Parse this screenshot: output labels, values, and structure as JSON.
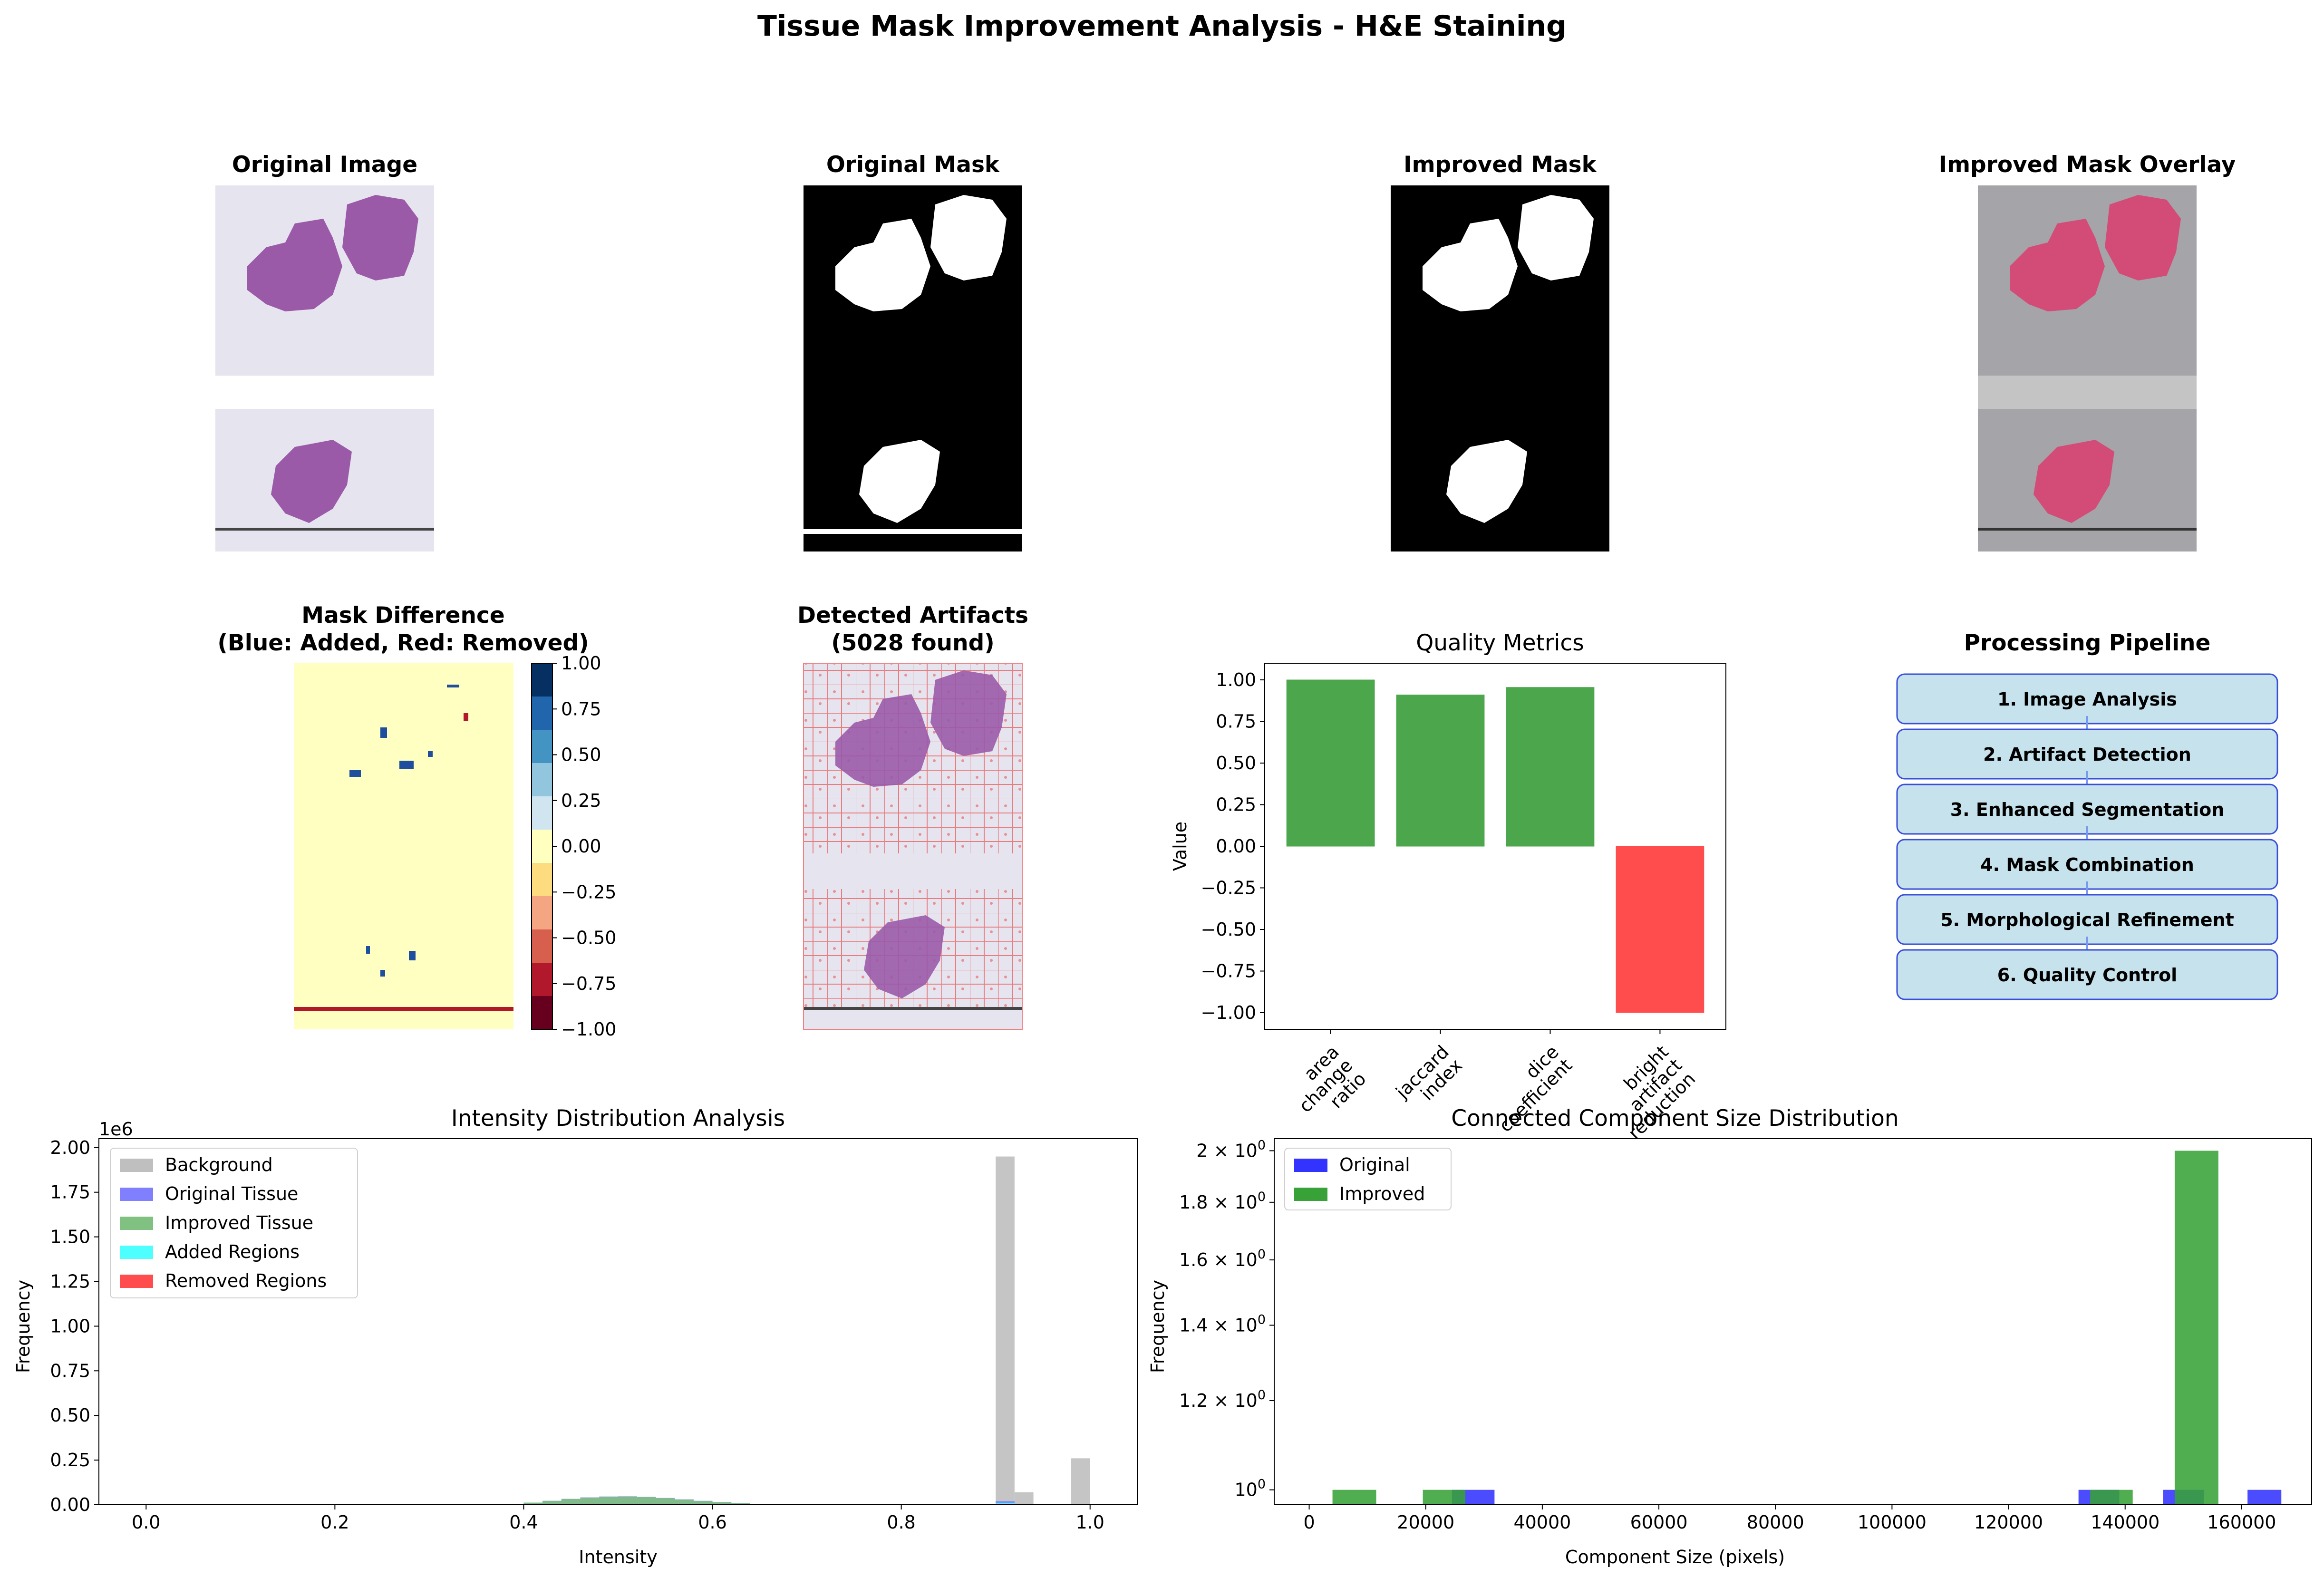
{
  "figure": {
    "title": "Tissue Mask Improvement Analysis - H&E Staining"
  },
  "panels": {
    "original_image": {
      "title": "Original Image"
    },
    "original_mask": {
      "title": "Original Mask"
    },
    "improved_mask": {
      "title": "Improved Mask"
    },
    "overlay": {
      "title": "Improved Mask Overlay"
    },
    "mask_difference": {
      "title_line1": "Mask Difference",
      "title_line2": "(Blue: Added, Red: Removed)",
      "colorbar_ticks": [
        "1.00",
        "0.75",
        "0.50",
        "0.25",
        "0.00",
        "−0.25",
        "−0.50",
        "−0.75",
        "−1.00"
      ]
    },
    "artifacts": {
      "title_line1": "Detected Artifacts",
      "title_line2": "(5028 found)"
    },
    "pipeline": {
      "title": "Processing Pipeline",
      "steps": [
        "1. Image Analysis",
        "2. Artifact Detection",
        "3. Enhanced Segmentation",
        "4. Mask Combination",
        "5. Morphological Refinement",
        "6. Quality Control"
      ]
    }
  },
  "colors": {
    "tissue": "#9a5aa8",
    "slide_bg": "#e6e4ee",
    "overlay_bg": "#a5a4a8",
    "overlay_tissue": "#d34c78",
    "pipeline_fill": "#c6e2ec",
    "pipeline_edge": "#3a4fd9",
    "diff_bg": "#ffffc2",
    "green_bar": "#4ca64c",
    "red_bar": "#ff4d4d"
  },
  "chart_data": [
    {
      "type": "bar",
      "title": "Quality Metrics",
      "ylabel": "Value",
      "categories": [
        "area\nchange\nratio",
        "jaccard\nindex",
        "dice\ncoefficient",
        "bright\nartifact\nreduction"
      ],
      "values": [
        1.0,
        0.91,
        0.955,
        -1.0
      ],
      "colors": [
        "#4ca64c",
        "#4ca64c",
        "#4ca64c",
        "#ff4d4d"
      ],
      "ylim": [
        -1.1,
        1.1
      ],
      "yticks": [
        -1.0,
        -0.75,
        -0.5,
        -0.25,
        0.0,
        0.25,
        0.5,
        0.75,
        1.0
      ],
      "ytick_labels": [
        "−1.00",
        "−0.75",
        "−0.50",
        "−0.25",
        "0.00",
        "0.25",
        "0.50",
        "0.75",
        "1.00"
      ]
    },
    {
      "type": "bar",
      "title": "Intensity Distribution Analysis",
      "xlabel": "Intensity",
      "ylabel": "Frequency",
      "offset_label": "1e6",
      "xlim": [
        -0.05,
        1.05
      ],
      "ylim": [
        0,
        2.05
      ],
      "xticks": [
        0.0,
        0.2,
        0.4,
        0.6,
        0.8,
        1.0
      ],
      "xtick_labels": [
        "0.0",
        "0.2",
        "0.4",
        "0.6",
        "0.8",
        "1.0"
      ],
      "yticks": [
        0.0,
        0.25,
        0.5,
        0.75,
        1.0,
        1.25,
        1.5,
        1.75,
        2.0
      ],
      "ytick_labels": [
        "0.00",
        "0.25",
        "0.50",
        "0.75",
        "1.00",
        "1.25",
        "1.50",
        "1.75",
        "2.00"
      ],
      "legend_position": "top-left",
      "bin_width": 0.02,
      "series": [
        {
          "name": "Background",
          "color": "#bfbfbf",
          "bins": [
            0.9,
            0.92,
            0.98
          ],
          "values": [
            1.95,
            0.07,
            0.26
          ]
        },
        {
          "name": "Original Tissue",
          "color": "#8080ff",
          "bins": [
            0.36,
            0.38,
            0.4,
            0.42,
            0.44,
            0.46,
            0.48,
            0.5,
            0.52,
            0.54,
            0.56,
            0.58,
            0.6,
            0.62,
            0.64,
            0.66,
            0.68,
            0.9
          ],
          "values": [
            0.002,
            0.005,
            0.012,
            0.022,
            0.033,
            0.041,
            0.046,
            0.047,
            0.044,
            0.038,
            0.03,
            0.022,
            0.015,
            0.009,
            0.005,
            0.003,
            0.001,
            0.02
          ]
        },
        {
          "name": "Improved Tissue",
          "color": "#80c080",
          "bins": [
            0.36,
            0.38,
            0.4,
            0.42,
            0.44,
            0.46,
            0.48,
            0.5,
            0.52,
            0.54,
            0.56,
            0.58,
            0.6,
            0.62,
            0.64,
            0.66,
            0.68
          ],
          "values": [
            0.002,
            0.005,
            0.012,
            0.022,
            0.032,
            0.04,
            0.045,
            0.046,
            0.043,
            0.037,
            0.029,
            0.021,
            0.014,
            0.009,
            0.005,
            0.003,
            0.001
          ]
        },
        {
          "name": "Added Regions",
          "color": "#4dffff",
          "bins": [
            0.9
          ],
          "values": [
            0.01
          ]
        },
        {
          "name": "Removed Regions",
          "color": "#ff4d4d",
          "bins": [],
          "values": []
        }
      ]
    },
    {
      "type": "bar",
      "title": "Connected Component Size Distribution",
      "xlabel": "Component Size (pixels)",
      "ylabel": "Frequency",
      "xlim": [
        -6000,
        172000
      ],
      "log_y": true,
      "ylim": [
        0.97,
        2.05
      ],
      "xticks": [
        0,
        20000,
        40000,
        60000,
        80000,
        100000,
        120000,
        140000,
        160000
      ],
      "xtick_labels": [
        "0",
        "20000",
        "40000",
        "60000",
        "80000",
        "100000",
        "120000",
        "140000",
        "160000"
      ],
      "ytick_labels": [
        {
          "base": "10",
          "exp": "0",
          "coef": "",
          "value": 1.0
        },
        {
          "base": "10",
          "exp": "0",
          "coef": "1.2 × ",
          "value": 1.2
        },
        {
          "base": "10",
          "exp": "0",
          "coef": "1.4 × ",
          "value": 1.4
        },
        {
          "base": "10",
          "exp": "0",
          "coef": "1.6 × ",
          "value": 1.6
        },
        {
          "base": "10",
          "exp": "0",
          "coef": "1.8 × ",
          "value": 1.8
        },
        {
          "base": "10",
          "exp": "0",
          "coef": "2 × ",
          "value": 2.0
        }
      ],
      "legend_position": "top-left",
      "series": [
        {
          "name": "Original",
          "color": "#3333ff",
          "bars": [
            [
              24500,
              31800,
              1
            ],
            [
              132000,
              139000,
              1
            ],
            [
              146500,
              153500,
              1
            ],
            [
              161000,
              166800,
              1
            ]
          ]
        },
        {
          "name": "Improved",
          "color": "#38a238",
          "bars": [
            [
              4000,
              11500,
              1
            ],
            [
              19500,
              26800,
              1
            ],
            [
              134000,
              141300,
              1
            ],
            [
              148500,
              156000,
              2
            ]
          ]
        }
      ]
    }
  ]
}
